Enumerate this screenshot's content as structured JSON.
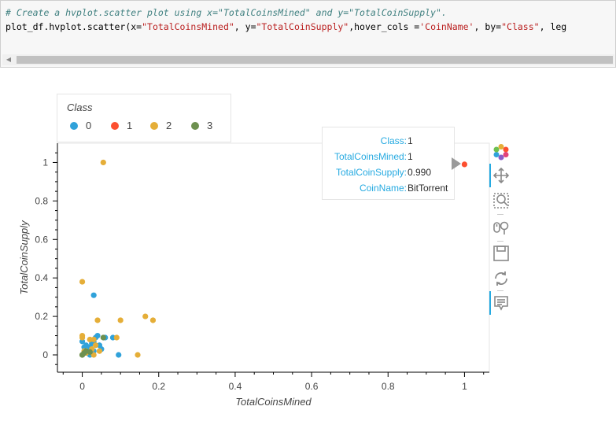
{
  "code_cell": {
    "comment": "# Create a hvplot.scatter plot using x=\"TotalCoinsMined\" and y=\"TotalCoinSupply\".",
    "code_prefix": "plot_df.hvplot.scatter(x=",
    "arg_x": "\"TotalCoinsMined\"",
    "code_sep1": ", y=",
    "arg_y": "\"TotalCoinSupply\"",
    "code_sep2": ",hover_cols =",
    "arg_hover": "'CoinName'",
    "code_sep3": ", by=",
    "arg_by": "\"Class\"",
    "code_suffix": ", leg"
  },
  "legend": {
    "title": "Class",
    "items": [
      {
        "label": "0",
        "color": "#30a2da"
      },
      {
        "label": "1",
        "color": "#fc4f30"
      },
      {
        "label": "2",
        "color": "#e5ae38"
      },
      {
        "label": "3",
        "color": "#6d904f"
      }
    ]
  },
  "tooltip": {
    "rows": [
      {
        "key": "Class:",
        "value": "1"
      },
      {
        "key": "TotalCoinsMined:",
        "value": "1"
      },
      {
        "key": "TotalCoinSupply:",
        "value": "0.990"
      },
      {
        "key": "CoinName:",
        "value": "BitTorrent"
      }
    ]
  },
  "toolbar": {
    "tools": [
      "bokeh-logo-icon",
      "pan-icon",
      "box-zoom-icon",
      "wheel-zoom-icon",
      "save-icon",
      "reset-icon",
      "hover-icon"
    ]
  },
  "chart_data": {
    "type": "scatter",
    "xlabel": "TotalCoinsMined",
    "ylabel": "TotalCoinSupply",
    "xlim": [
      -0.065,
      1.065
    ],
    "ylim": [
      -0.09,
      1.1
    ],
    "xticks": [
      0,
      0.2,
      0.4,
      0.6,
      0.8,
      1
    ],
    "xtick_labels": [
      "0",
      "0.2",
      "0.4",
      "0.6",
      "0.8",
      "1"
    ],
    "yticks": [
      0,
      0.2,
      0.4,
      0.6,
      0.8,
      1
    ],
    "ytick_labels": [
      "0",
      "0.2",
      "0.4",
      "0.6",
      "0.8",
      "1"
    ],
    "grid": false,
    "series": [
      {
        "name": "0",
        "color": "#30a2da",
        "points": [
          [
            0.0,
            0.07
          ],
          [
            0.01,
            0.05
          ],
          [
            0.02,
            0.04
          ],
          [
            0.03,
            0.31
          ],
          [
            0.03,
            0.07
          ],
          [
            0.035,
            0.09
          ],
          [
            0.04,
            0.1
          ],
          [
            0.045,
            0.05
          ],
          [
            0.05,
            0.03
          ],
          [
            0.06,
            0.09
          ],
          [
            0.02,
            0.0
          ],
          [
            0.01,
            0.02
          ],
          [
            0.005,
            0.04
          ],
          [
            0.08,
            0.09
          ],
          [
            0.095,
            0.0
          ],
          [
            0.0,
            0.0
          ],
          [
            0.015,
            0.01
          ],
          [
            0.025,
            0.06
          ],
          [
            0.03,
            0.02
          ]
        ]
      },
      {
        "name": "1",
        "color": "#fc4f30",
        "points": [
          [
            1.0,
            0.99
          ]
        ]
      },
      {
        "name": "2",
        "color": "#e5ae38",
        "points": [
          [
            0.055,
            1.0
          ],
          [
            0.0,
            0.38
          ],
          [
            0.04,
            0.18
          ],
          [
            0.1,
            0.18
          ],
          [
            0.165,
            0.2
          ],
          [
            0.185,
            0.18
          ],
          [
            0.0,
            0.1
          ],
          [
            0.0,
            0.09
          ],
          [
            0.02,
            0.08
          ],
          [
            0.03,
            0.08
          ],
          [
            0.09,
            0.09
          ],
          [
            0.145,
            0.0
          ],
          [
            0.005,
            0.02
          ],
          [
            0.01,
            0.01
          ],
          [
            0.025,
            0.03
          ],
          [
            0.035,
            0.05
          ],
          [
            0.045,
            0.02
          ],
          [
            0.0,
            0.0
          ],
          [
            0.012,
            0.015
          ],
          [
            0.03,
            0.0
          ]
        ]
      },
      {
        "name": "3",
        "color": "#6d904f",
        "points": [
          [
            0.0,
            0.0
          ],
          [
            0.005,
            0.01
          ],
          [
            0.01,
            0.02
          ],
          [
            0.055,
            0.09
          ],
          [
            0.02,
            0.015
          ]
        ]
      }
    ]
  }
}
